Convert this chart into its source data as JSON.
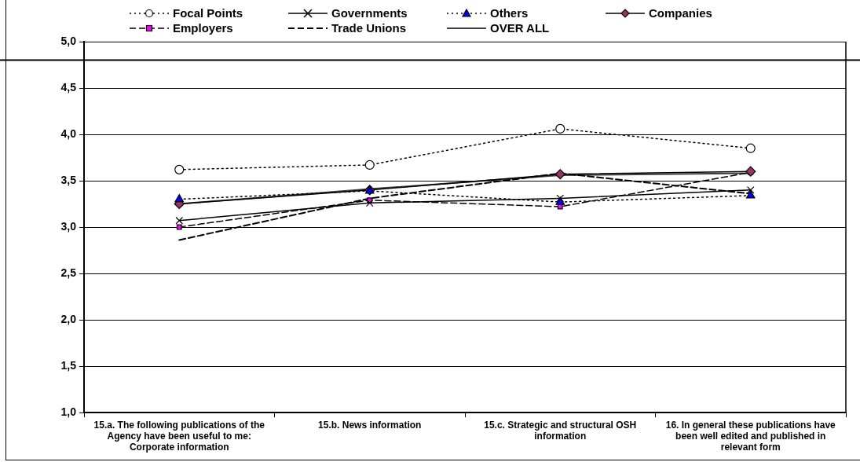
{
  "chart_data": {
    "type": "line",
    "categories": [
      "15.a. The following publications of the Agency have been useful to me: Corporate information",
      "15.b. News information",
      "15.c. Strategic and structural OSH information",
      "16. In general these publications have been well edited and published in relevant form"
    ],
    "series": [
      {
        "name": "Focal Points",
        "color": "#ffffff",
        "marker": "circle",
        "line_style": "dotted",
        "values": [
          3.62,
          3.67,
          4.06,
          3.85
        ]
      },
      {
        "name": "Governments",
        "color": "#000000",
        "marker": "cross",
        "line_style": "solid",
        "values": [
          3.07,
          3.26,
          3.31,
          3.4
        ]
      },
      {
        "name": "Others",
        "color": "#0000ff",
        "marker": "triangle",
        "line_style": "dotted",
        "values": [
          3.3,
          3.39,
          3.27,
          3.34
        ]
      },
      {
        "name": "Companies",
        "color": "#993366",
        "marker": "diamond",
        "line_style": "solid",
        "values": [
          3.25,
          3.4,
          3.57,
          3.6
        ]
      },
      {
        "name": "Employers",
        "color": "#ff00ff",
        "marker": "square",
        "line_style": "dashed",
        "values": [
          3.0,
          3.29,
          3.22,
          3.59
        ]
      },
      {
        "name": "Trade Unions",
        "color": "#000000",
        "marker": "none",
        "line_style": "dashed",
        "values": [
          2.86,
          3.31,
          3.58,
          3.36
        ]
      },
      {
        "name": "OVER ALL",
        "color": "#404040",
        "marker": "none",
        "line_style": "solid",
        "values": [
          3.25,
          3.41,
          3.56,
          3.58
        ]
      }
    ],
    "ylim": [
      1,
      5
    ],
    "yticks": [
      {
        "value": 1,
        "label": "1,0"
      },
      {
        "value": 1.5,
        "label": "1,5"
      },
      {
        "value": 2,
        "label": "2,0"
      },
      {
        "value": 2.5,
        "label": "2,5"
      },
      {
        "value": 3,
        "label": "3,0"
      },
      {
        "value": 3.5,
        "label": "3,5"
      },
      {
        "value": 4,
        "label": "4,0"
      },
      {
        "value": 4.5,
        "label": "4,5"
      },
      {
        "value": 5,
        "label": "5,0"
      }
    ],
    "grid": "y",
    "legend": "top",
    "ref_lines": [
      {
        "axis": "y",
        "value": 4.8,
        "color": "#000000"
      }
    ]
  }
}
